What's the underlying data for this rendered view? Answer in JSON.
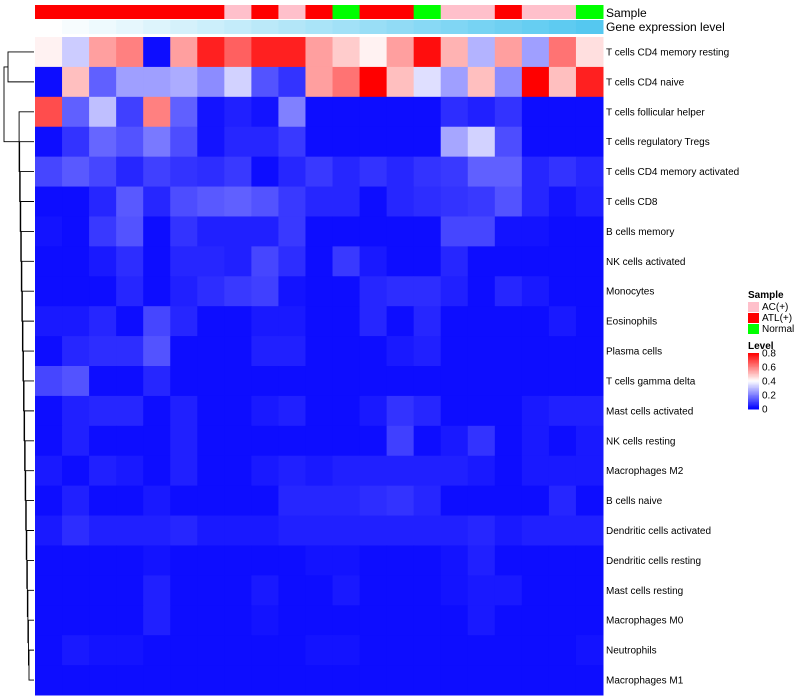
{
  "chart_data": {
    "type": "heatmap",
    "title": "",
    "annotation_labels": {
      "sample": "Sample",
      "expression": "Gene expression level"
    },
    "sample_groups": [
      "ATL(+)",
      "ATL(+)",
      "ATL(+)",
      "ATL(+)",
      "ATL(+)",
      "ATL(+)",
      "ATL(+)",
      "AC(+)",
      "ATL(+)",
      "AC(+)",
      "ATL(+)",
      "Normal",
      "ATL(+)",
      "ATL(+)",
      "Normal",
      "AC(+)",
      "AC(+)",
      "ATL(+)",
      "AC(+)",
      "AC(+)",
      "Normal"
    ],
    "expression_level": [
      0.0,
      0.05,
      0.1,
      0.15,
      0.2,
      0.25,
      0.3,
      0.35,
      0.4,
      0.45,
      0.5,
      0.55,
      0.6,
      0.65,
      0.7,
      0.75,
      0.8,
      0.85,
      0.9,
      0.95,
      1.0
    ],
    "rows": [
      "T cells CD4 memory resting",
      "T cells CD4 naive",
      "T cells follicular helper",
      "T cells regulatory  Tregs",
      "T cells CD4 memory activated",
      "T cells CD8",
      "B cells memory",
      "NK cells activated",
      "Monocytes",
      "Eosinophils",
      "Plasma cells",
      "T cells gamma delta",
      "Mast cells activated",
      "NK cells resting",
      "Macrophages M2",
      "B cells naive",
      "Dendritic cells activated",
      "Dendritic cells resting",
      "Mast cells resting",
      "Macrophages M0",
      "Neutrophils",
      "Macrophages M1"
    ],
    "values": [
      [
        0.42,
        0.32,
        0.55,
        0.6,
        0.02,
        0.55,
        0.75,
        0.65,
        0.75,
        0.75,
        0.55,
        0.48,
        0.42,
        0.55,
        0.78,
        0.52,
        0.28,
        0.55,
        0.25,
        0.62,
        0.45
      ],
      [
        0.02,
        0.5,
        0.15,
        0.25,
        0.25,
        0.27,
        0.22,
        0.33,
        0.13,
        0.08,
        0.55,
        0.62,
        0.8,
        0.5,
        0.35,
        0.25,
        0.5,
        0.22,
        0.8,
        0.5,
        0.75
      ],
      [
        0.68,
        0.15,
        0.3,
        0.1,
        0.6,
        0.15,
        0.03,
        0.05,
        0.03,
        0.2,
        0.02,
        0.02,
        0.02,
        0.02,
        0.02,
        0.07,
        0.05,
        0.08,
        0.02,
        0.02,
        0.02
      ],
      [
        0.02,
        0.08,
        0.16,
        0.13,
        0.19,
        0.12,
        0.03,
        0.06,
        0.06,
        0.09,
        0.02,
        0.02,
        0.02,
        0.02,
        0.02,
        0.26,
        0.33,
        0.12,
        0.02,
        0.02,
        0.02
      ],
      [
        0.11,
        0.14,
        0.11,
        0.06,
        0.1,
        0.08,
        0.07,
        0.09,
        0.02,
        0.06,
        0.09,
        0.06,
        0.08,
        0.06,
        0.08,
        0.09,
        0.15,
        0.15,
        0.06,
        0.08,
        0.06
      ],
      [
        0.02,
        0.02,
        0.06,
        0.14,
        0.06,
        0.12,
        0.14,
        0.15,
        0.13,
        0.09,
        0.06,
        0.06,
        0.02,
        0.06,
        0.07,
        0.08,
        0.09,
        0.13,
        0.06,
        0.03,
        0.05
      ],
      [
        0.03,
        0.02,
        0.09,
        0.13,
        0.02,
        0.08,
        0.05,
        0.05,
        0.05,
        0.09,
        0.02,
        0.02,
        0.02,
        0.02,
        0.02,
        0.11,
        0.11,
        0.03,
        0.03,
        0.02,
        0.02
      ],
      [
        0.02,
        0.02,
        0.04,
        0.07,
        0.02,
        0.06,
        0.06,
        0.05,
        0.11,
        0.07,
        0.02,
        0.09,
        0.04,
        0.02,
        0.02,
        0.06,
        0.02,
        0.02,
        0.02,
        0.02,
        0.02
      ],
      [
        0.02,
        0.02,
        0.02,
        0.06,
        0.02,
        0.05,
        0.07,
        0.09,
        0.1,
        0.03,
        0.02,
        0.02,
        0.06,
        0.07,
        0.07,
        0.05,
        0.02,
        0.06,
        0.04,
        0.02,
        0.02
      ],
      [
        0.04,
        0.04,
        0.06,
        0.02,
        0.11,
        0.06,
        0.02,
        0.02,
        0.04,
        0.04,
        0.02,
        0.02,
        0.06,
        0.02,
        0.06,
        0.02,
        0.02,
        0.02,
        0.02,
        0.04,
        0.02
      ],
      [
        0.02,
        0.06,
        0.07,
        0.07,
        0.13,
        0.02,
        0.02,
        0.02,
        0.05,
        0.05,
        0.02,
        0.02,
        0.02,
        0.04,
        0.05,
        0.02,
        0.02,
        0.02,
        0.02,
        0.02,
        0.02
      ],
      [
        0.11,
        0.13,
        0.02,
        0.02,
        0.06,
        0.02,
        0.02,
        0.02,
        0.02,
        0.02,
        0.02,
        0.02,
        0.02,
        0.02,
        0.02,
        0.02,
        0.02,
        0.02,
        0.02,
        0.02,
        0.02
      ],
      [
        0.02,
        0.05,
        0.06,
        0.06,
        0.02,
        0.05,
        0.02,
        0.02,
        0.04,
        0.05,
        0.02,
        0.02,
        0.04,
        0.08,
        0.06,
        0.02,
        0.02,
        0.02,
        0.04,
        0.05,
        0.05
      ],
      [
        0.02,
        0.05,
        0.02,
        0.02,
        0.02,
        0.05,
        0.02,
        0.02,
        0.02,
        0.02,
        0.02,
        0.02,
        0.02,
        0.1,
        0.02,
        0.04,
        0.08,
        0.02,
        0.04,
        0.02,
        0.04
      ],
      [
        0.04,
        0.02,
        0.05,
        0.04,
        0.02,
        0.05,
        0.02,
        0.02,
        0.04,
        0.05,
        0.04,
        0.05,
        0.05,
        0.05,
        0.05,
        0.05,
        0.04,
        0.02,
        0.04,
        0.04,
        0.04
      ],
      [
        0.02,
        0.05,
        0.02,
        0.02,
        0.04,
        0.02,
        0.02,
        0.02,
        0.02,
        0.06,
        0.06,
        0.06,
        0.07,
        0.08,
        0.06,
        0.02,
        0.02,
        0.02,
        0.02,
        0.06,
        0.02
      ],
      [
        0.04,
        0.07,
        0.05,
        0.05,
        0.05,
        0.06,
        0.04,
        0.04,
        0.04,
        0.05,
        0.05,
        0.05,
        0.05,
        0.05,
        0.05,
        0.05,
        0.06,
        0.04,
        0.05,
        0.05,
        0.05
      ],
      [
        0.02,
        0.02,
        0.02,
        0.02,
        0.03,
        0.02,
        0.02,
        0.02,
        0.02,
        0.02,
        0.03,
        0.03,
        0.02,
        0.02,
        0.02,
        0.03,
        0.05,
        0.02,
        0.02,
        0.02,
        0.02
      ],
      [
        0.02,
        0.02,
        0.02,
        0.02,
        0.05,
        0.02,
        0.02,
        0.02,
        0.04,
        0.02,
        0.02,
        0.04,
        0.02,
        0.02,
        0.02,
        0.03,
        0.04,
        0.04,
        0.02,
        0.02,
        0.02
      ],
      [
        0.02,
        0.02,
        0.02,
        0.02,
        0.05,
        0.02,
        0.02,
        0.02,
        0.03,
        0.02,
        0.02,
        0.02,
        0.02,
        0.02,
        0.02,
        0.02,
        0.04,
        0.02,
        0.02,
        0.02,
        0.02
      ],
      [
        0.02,
        0.04,
        0.03,
        0.03,
        0.02,
        0.02,
        0.02,
        0.02,
        0.02,
        0.02,
        0.03,
        0.03,
        0.02,
        0.02,
        0.02,
        0.02,
        0.02,
        0.02,
        0.02,
        0.02,
        0.03
      ],
      [
        0.02,
        0.02,
        0.02,
        0.02,
        0.02,
        0.02,
        0.02,
        0.02,
        0.02,
        0.02,
        0.02,
        0.02,
        0.02,
        0.02,
        0.02,
        0.02,
        0.02,
        0.02,
        0.02,
        0.02,
        0.02
      ]
    ],
    "legend_sample": {
      "title": "Sample",
      "entries": [
        {
          "label": "AC(+)",
          "color": "#ffc0cb"
        },
        {
          "label": "ATL(+)",
          "color": "#ff0000"
        },
        {
          "label": "Normal",
          "color": "#00ff00"
        }
      ]
    },
    "legend_level": {
      "title": "Level",
      "ticks": [
        "0.8",
        "0.6",
        "0.4",
        "0.2",
        "0"
      ],
      "tick_values": [
        0.8,
        0.6,
        0.4,
        0.2,
        0
      ],
      "range": [
        0,
        0.8
      ]
    },
    "colors": {
      "low": "#0000ff",
      "mid": "#ffffff",
      "high": "#ff0000",
      "expr_low": "#ffffff",
      "expr_high": "#55c8f0"
    }
  }
}
